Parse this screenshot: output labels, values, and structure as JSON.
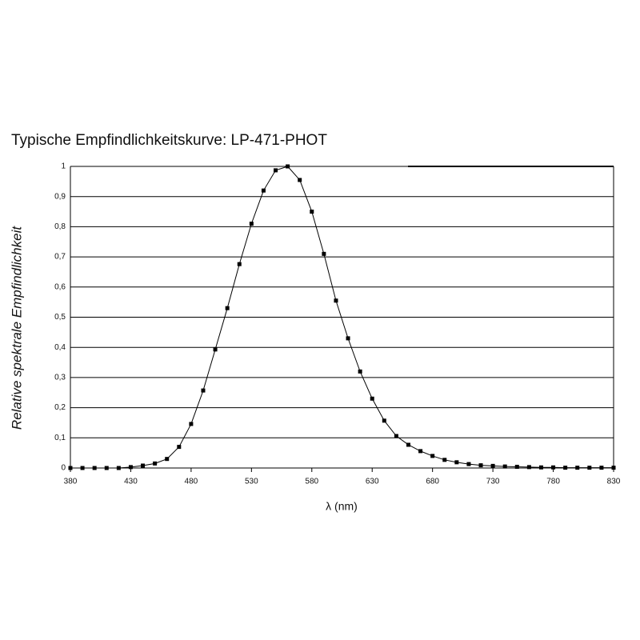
{
  "chart_data": {
    "type": "line",
    "title": "Typische Empfindlichkeitskurve: LP-471-PHOT",
    "x_label": "λ (nm)",
    "y_label": "Relative spektrale Empfindlichkeit",
    "x": [
      380,
      390,
      400,
      410,
      420,
      430,
      440,
      450,
      460,
      470,
      480,
      490,
      500,
      510,
      520,
      530,
      540,
      550,
      560,
      570,
      580,
      590,
      600,
      610,
      620,
      630,
      640,
      650,
      660,
      670,
      680,
      690,
      700,
      710,
      720,
      730,
      740,
      750,
      760,
      770,
      780,
      790,
      800,
      810,
      820,
      830
    ],
    "series": [
      {
        "name": "LP-471-PHOT",
        "color": "#000000",
        "values": [
          0,
          0,
          0,
          0,
          0,
          0.003,
          0.008,
          0.015,
          0.03,
          0.07,
          0.146,
          0.257,
          0.393,
          0.53,
          0.676,
          0.81,
          0.92,
          0.987,
          1,
          0.955,
          0.85,
          0.71,
          0.555,
          0.43,
          0.32,
          0.23,
          0.157,
          0.106,
          0.077,
          0.056,
          0.04,
          0.027,
          0.019,
          0.013,
          0.009,
          0.007,
          0.005,
          0.004,
          0.003,
          0.002,
          0.002,
          0.001,
          0.001,
          0.001,
          0.001,
          0.001
        ]
      }
    ],
    "xlim": [
      380,
      830
    ],
    "ylim": [
      0,
      1
    ],
    "xticks": [
      380,
      430,
      480,
      530,
      580,
      630,
      680,
      730,
      780,
      830
    ],
    "yticks": [
      0,
      {
        "value": 0.1,
        "label": "0,1"
      },
      {
        "value": 0.2,
        "label": "0,2"
      },
      {
        "value": 0.3,
        "label": "0,3"
      },
      {
        "value": 0.4,
        "label": "0,4"
      },
      {
        "value": 0.5,
        "label": "0,5"
      },
      {
        "value": 0.6,
        "label": "0,6"
      },
      {
        "value": 0.7,
        "label": "0,7"
      },
      {
        "value": 0.8,
        "label": "0,8"
      },
      {
        "value": 0.9,
        "label": "0,9"
      },
      1
    ],
    "grid": true
  }
}
